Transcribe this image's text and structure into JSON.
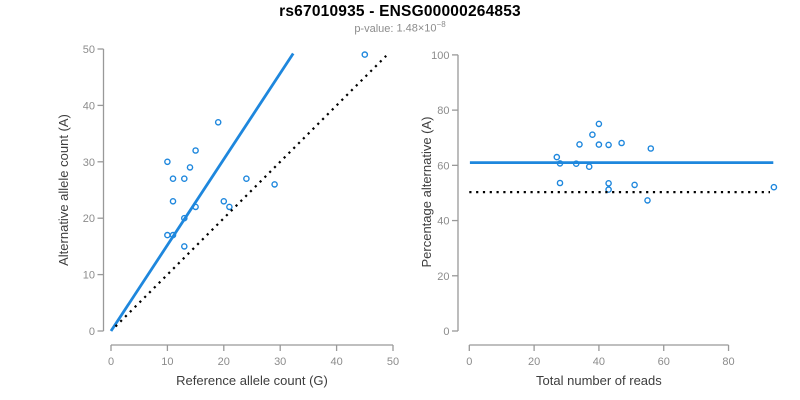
{
  "header": {
    "title": "rs67010935 - ENSG00000264853",
    "pvalue_label": "p-value:",
    "pvalue_mantissa": "1.48",
    "pvalue_base": "×10",
    "pvalue_exponent": "−8"
  },
  "colors": {
    "accent_blue": "#1e87dd",
    "axis_gray": "#999999",
    "tick_label_gray": "#8c8c8c",
    "axis_title_dark": "#3d3d3d",
    "reference_black": "#000000"
  },
  "chart_data": [
    {
      "type": "scatter",
      "xlabel": "Reference allele count (G)",
      "ylabel": "Alternative allele count (A)",
      "xlim": [
        0,
        50
      ],
      "ylim": [
        0,
        50
      ],
      "xticks": [
        0,
        10,
        20,
        30,
        40,
        50
      ],
      "yticks": [
        0,
        10,
        20,
        30,
        40,
        50
      ],
      "grid": false,
      "legend": "none",
      "marker": "open-circle",
      "points": [
        [
          45,
          49
        ],
        [
          19,
          37
        ],
        [
          15,
          32
        ],
        [
          10,
          30
        ],
        [
          14,
          29
        ],
        [
          11,
          27
        ],
        [
          13,
          27
        ],
        [
          24,
          27
        ],
        [
          29,
          26
        ],
        [
          11,
          23
        ],
        [
          20,
          23
        ],
        [
          15,
          22
        ],
        [
          21,
          22
        ],
        [
          13,
          20
        ],
        [
          10,
          17
        ],
        [
          11,
          17
        ],
        [
          13,
          15
        ]
      ],
      "lines": [
        {
          "role": "fitted-ratio",
          "style": "solid",
          "color": "blue",
          "from": [
            0,
            0
          ],
          "to": [
            32.3,
            49.2
          ]
        },
        {
          "role": "identity",
          "style": "dotted",
          "color": "black",
          "from": [
            0.8,
            0.8
          ],
          "to": [
            48.8,
            48.8
          ]
        }
      ]
    },
    {
      "type": "scatter",
      "xlabel": "Total number of reads",
      "ylabel": "Percentage alternative (A)",
      "xlim": [
        0,
        94
      ],
      "ylim": [
        0,
        100
      ],
      "xticks": [
        0,
        20,
        40,
        60,
        80
      ],
      "yticks": [
        0,
        20,
        40,
        60,
        80,
        100
      ],
      "grid": false,
      "legend": "none",
      "marker": "open-circle",
      "points": [
        [
          94,
          52.1
        ],
        [
          56,
          66.1
        ],
        [
          47,
          68.1
        ],
        [
          40,
          75.0
        ],
        [
          43,
          67.4
        ],
        [
          38,
          71.1
        ],
        [
          40,
          67.5
        ],
        [
          51,
          52.9
        ],
        [
          55,
          47.3
        ],
        [
          34,
          67.6
        ],
        [
          43,
          53.5
        ],
        [
          37,
          59.5
        ],
        [
          43,
          51.2
        ],
        [
          33,
          60.6
        ],
        [
          27,
          63.0
        ],
        [
          28,
          60.7
        ],
        [
          28,
          53.6
        ]
      ],
      "lines": [
        {
          "role": "fitted-percentage",
          "style": "solid",
          "color": "blue",
          "from": [
            0.2,
            61
          ],
          "to": [
            93.8,
            61
          ]
        },
        {
          "role": "null-50-percent",
          "style": "dotted",
          "color": "black",
          "from": [
            0,
            50.3
          ],
          "to": [
            92.8,
            50.3
          ]
        }
      ]
    }
  ]
}
